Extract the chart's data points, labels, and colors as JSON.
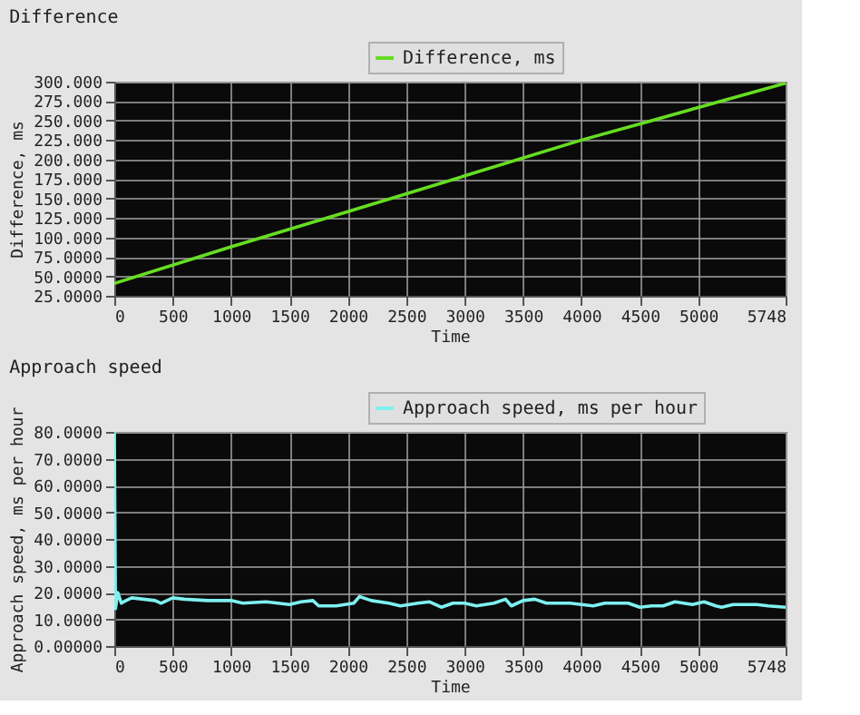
{
  "chart_data": [
    {
      "type": "line",
      "title": "Difference",
      "xlabel": "Time",
      "ylabel": "Difference, ms",
      "legend": "top right",
      "grid": true,
      "line_style": "solid",
      "marker": "none",
      "xlim": [
        0,
        5748
      ],
      "xticks": [
        0,
        500,
        1000,
        1500,
        2000,
        2500,
        3000,
        3500,
        4000,
        4500,
        5000,
        5748
      ],
      "ylim": [
        25,
        300
      ],
      "yticks": [
        {
          "value": 25,
          "label": "25.0000"
        },
        {
          "value": 50,
          "label": "50.0000"
        },
        {
          "value": 75,
          "label": "75.0000"
        },
        {
          "value": 100,
          "label": "100.000"
        },
        {
          "value": 125,
          "label": "125.000"
        },
        {
          "value": 150,
          "label": "150.000"
        },
        {
          "value": 175,
          "label": "175.000"
        },
        {
          "value": 200,
          "label": "200.000"
        },
        {
          "value": 225,
          "label": "225.000"
        },
        {
          "value": 250,
          "label": "250.000"
        },
        {
          "value": 275,
          "label": "275.000"
        },
        {
          "value": 300,
          "label": "300.000"
        }
      ],
      "series": [
        {
          "name": "Difference, ms",
          "color": "#66dd22",
          "x": [
            0,
            1000,
            2000,
            3000,
            4000,
            4600,
            5748
          ],
          "values": [
            41,
            88,
            133,
            179,
            225,
            250,
            298
          ]
        }
      ]
    },
    {
      "type": "line",
      "title": "Approach speed",
      "xlabel": "Time",
      "ylabel": "Approach speed, ms per hour",
      "legend": "top right",
      "grid": true,
      "line_style": "solid",
      "marker": "none",
      "xlim": [
        0,
        5748
      ],
      "xticks": [
        0,
        500,
        1000,
        1500,
        2000,
        2500,
        3000,
        3500,
        4000,
        4500,
        5000,
        5748
      ],
      "ylim": [
        0,
        80
      ],
      "yticks": [
        {
          "value": 0,
          "label": "0.00000"
        },
        {
          "value": 10,
          "label": "10.0000"
        },
        {
          "value": 20,
          "label": "20.0000"
        },
        {
          "value": 30,
          "label": "30.0000"
        },
        {
          "value": 40,
          "label": "40.0000"
        },
        {
          "value": 50,
          "label": "50.0000"
        },
        {
          "value": 60,
          "label": "60.0000"
        },
        {
          "value": 70,
          "label": "70.0000"
        },
        {
          "value": 80,
          "label": "80.0000"
        }
      ],
      "series": [
        {
          "name": "Approach speed, ms per hour",
          "color": "#7ff0f0",
          "x": [
            0,
            10,
            30,
            60,
            100,
            150,
            250,
            350,
            400,
            500,
            600,
            800,
            1000,
            1100,
            1300,
            1400,
            1500,
            1600,
            1700,
            1750,
            1900,
            2050,
            2100,
            2200,
            2350,
            2450,
            2600,
            2700,
            2800,
            2900,
            3000,
            3100,
            3250,
            3350,
            3400,
            3500,
            3600,
            3700,
            3900,
            4000,
            4100,
            4200,
            4400,
            4500,
            4600,
            4700,
            4800,
            4950,
            5050,
            5150,
            5200,
            5300,
            5500,
            5600,
            5748
          ],
          "values": [
            80,
            14,
            20,
            16,
            17,
            18,
            17.5,
            17,
            16,
            18,
            17.5,
            17,
            17,
            16,
            16.5,
            16,
            15.5,
            16.5,
            17,
            15,
            15,
            16,
            18.5,
            17,
            16,
            15,
            16,
            16.5,
            14.5,
            16,
            16,
            15,
            16,
            17.5,
            15,
            17,
            17.5,
            16,
            16,
            15.5,
            15,
            16,
            16,
            14.5,
            15,
            15,
            16.5,
            15.5,
            16.5,
            15,
            14.5,
            15.5,
            15.5,
            15,
            14.5
          ]
        }
      ]
    }
  ]
}
